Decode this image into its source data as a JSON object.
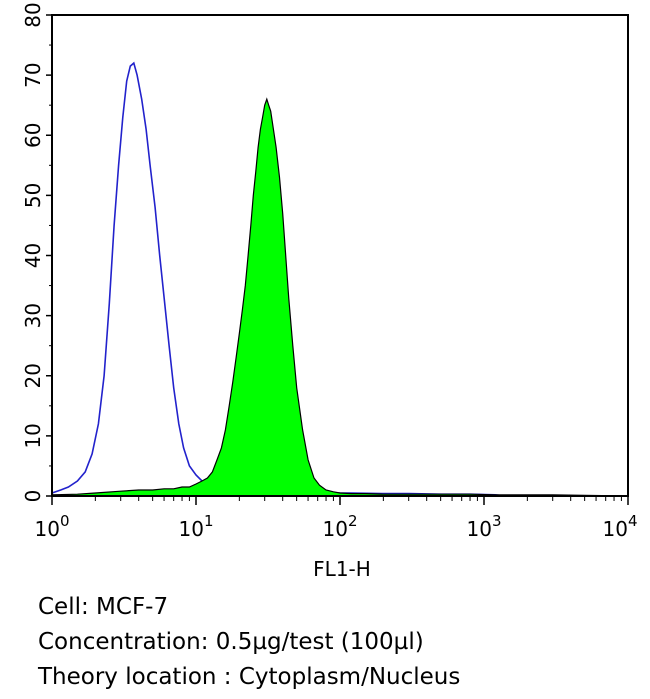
{
  "chart_data": {
    "type": "area",
    "title": "",
    "xlabel": "FL1-H",
    "ylabel": "",
    "x_scale": "log",
    "xlim": [
      1,
      10000
    ],
    "ylim": [
      0,
      80
    ],
    "x_ticks": [
      1,
      10,
      100,
      1000,
      10000
    ],
    "x_tick_labels": [
      {
        "base": "10",
        "exp": "0"
      },
      {
        "base": "10",
        "exp": "1"
      },
      {
        "base": "10",
        "exp": "2"
      },
      {
        "base": "10",
        "exp": "3"
      },
      {
        "base": "10",
        "exp": "4"
      }
    ],
    "y_ticks": [
      0,
      10,
      20,
      30,
      40,
      50,
      60,
      70,
      80
    ],
    "y_tick_labels": [
      "0",
      "10",
      "20",
      "30",
      "40",
      "50",
      "60",
      "70",
      "80"
    ],
    "grid": false,
    "series": [
      {
        "style": "outline",
        "color": "#2222cc",
        "x": [
          1.0,
          1.15,
          1.3,
          1.5,
          1.7,
          1.9,
          2.1,
          2.3,
          2.5,
          2.7,
          2.9,
          3.1,
          3.3,
          3.5,
          3.7,
          3.9,
          4.2,
          4.5,
          4.8,
          5.2,
          5.6,
          6.0,
          6.5,
          7.0,
          7.6,
          8.2,
          9.0,
          10.0,
          11.0,
          12.5,
          15,
          20,
          30,
          50,
          80,
          120,
          200,
          300,
          500,
          800,
          1200,
          1400
        ],
        "y": [
          0.5,
          1.0,
          1.5,
          2.5,
          4.0,
          7.0,
          12.0,
          20.0,
          32.0,
          45.0,
          55.0,
          63.0,
          69.0,
          71.5,
          72.0,
          70.0,
          66.0,
          61.0,
          55.0,
          48.0,
          40.0,
          33.0,
          25.0,
          18.0,
          12.0,
          8.0,
          5.0,
          3.5,
          2.5,
          1.8,
          1.2,
          0.8,
          0.6,
          0.5,
          0.5,
          0.5,
          0.4,
          0.4,
          0.3,
          0.3,
          0.2,
          0.0
        ]
      },
      {
        "style": "filled",
        "color": "#00ff00",
        "x": [
          1.0,
          1.5,
          2.0,
          3.0,
          4.0,
          5.0,
          6.0,
          7.0,
          8.0,
          9.0,
          10.0,
          11.0,
          12.0,
          13.0,
          14.0,
          15.0,
          16.0,
          17.0,
          18.0,
          19.0,
          20.0,
          21.0,
          22.0,
          23.0,
          24.0,
          25.0,
          26.0,
          27.0,
          28.0,
          29.0,
          30.0,
          31.0,
          32.0,
          33.0,
          34.0,
          36.0,
          38.0,
          40.0,
          42.0,
          44.0,
          47.0,
          50.0,
          55.0,
          60.0,
          66.0,
          72.0,
          80.0,
          90.0,
          100.0,
          120.0,
          150.0,
          200.0,
          300.0,
          500.0,
          800.0,
          1200.0,
          2000.0,
          3000.0,
          5000.0,
          10000.0
        ],
        "y": [
          0.2,
          0.3,
          0.5,
          0.8,
          1.0,
          1.0,
          1.2,
          1.2,
          1.5,
          1.5,
          2.0,
          2.5,
          3.0,
          4.0,
          6.0,
          8.0,
          11.0,
          15.0,
          19.0,
          23.0,
          27.0,
          31.0,
          35.0,
          40.0,
          45.0,
          50.0,
          54.0,
          58.0,
          61.0,
          63.0,
          65.0,
          66.0,
          65.0,
          64.0,
          62.0,
          58.0,
          53.0,
          47.0,
          40.0,
          33.0,
          25.0,
          18.0,
          11.0,
          6.0,
          3.0,
          1.8,
          1.0,
          0.7,
          0.5,
          0.4,
          0.4,
          0.3,
          0.3,
          0.3,
          0.3,
          0.2,
          0.2,
          0.2,
          0.1,
          0.0
        ]
      }
    ]
  },
  "caption": {
    "cell": "Cell: MCF-7",
    "concentration": "Concentration: 0.5µg/test (100µl)",
    "location": "Theory location : Cytoplasm/Nucleus"
  }
}
